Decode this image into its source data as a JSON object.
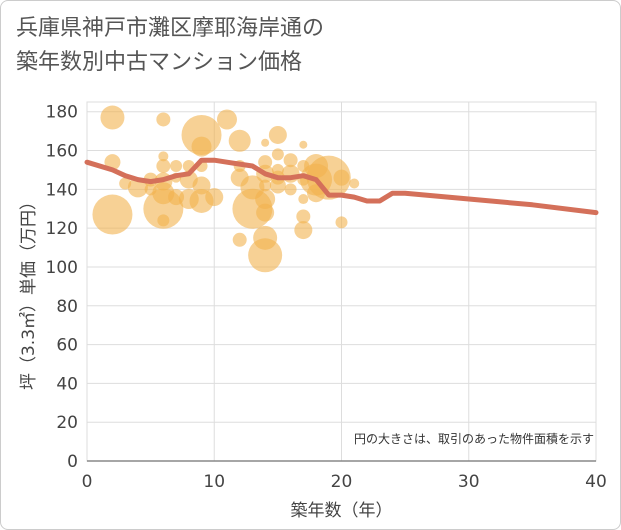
{
  "chart_data": {
    "type": "scatter",
    "title_line1": "兵庫県神戸市灘区摩耶海岸通の",
    "title_line2": "築年数別中古マンション価格",
    "xlabel": "築年数（年）",
    "ylabel": "坪（3.3㎡）単価（万円）",
    "xlim": [
      0,
      40
    ],
    "ylim": [
      0,
      185
    ],
    "x_ticks": [
      0,
      10,
      20,
      30,
      40
    ],
    "y_ticks": [
      0,
      20,
      40,
      60,
      80,
      100,
      120,
      140,
      160,
      180
    ],
    "note": "円の大きさは、取引のあった物件面積を示す",
    "colors": {
      "bubble": "#f2b24f",
      "trend": "#d4705a",
      "grid": "#dddddd"
    },
    "bubbles": [
      {
        "x": 2,
        "y": 177,
        "s": 12
      },
      {
        "x": 2,
        "y": 127,
        "s": 20
      },
      {
        "x": 2,
        "y": 154,
        "s": 8
      },
      {
        "x": 3,
        "y": 143,
        "s": 6
      },
      {
        "x": 4,
        "y": 141,
        "s": 10
      },
      {
        "x": 5,
        "y": 145,
        "s": 7
      },
      {
        "x": 5,
        "y": 140,
        "s": 6
      },
      {
        "x": 6,
        "y": 176,
        "s": 7
      },
      {
        "x": 6,
        "y": 157,
        "s": 5
      },
      {
        "x": 6,
        "y": 152,
        "s": 7
      },
      {
        "x": 6,
        "y": 144,
        "s": 9
      },
      {
        "x": 6,
        "y": 138,
        "s": 11
      },
      {
        "x": 6,
        "y": 130,
        "s": 20
      },
      {
        "x": 6,
        "y": 124,
        "s": 6
      },
      {
        "x": 7,
        "y": 152,
        "s": 6
      },
      {
        "x": 7,
        "y": 146,
        "s": 5
      },
      {
        "x": 7,
        "y": 136,
        "s": 8
      },
      {
        "x": 8,
        "y": 152,
        "s": 6
      },
      {
        "x": 8,
        "y": 145,
        "s": 9
      },
      {
        "x": 8,
        "y": 135,
        "s": 10
      },
      {
        "x": 9,
        "y": 168,
        "s": 20
      },
      {
        "x": 9,
        "y": 162,
        "s": 10
      },
      {
        "x": 9,
        "y": 152,
        "s": 6
      },
      {
        "x": 9,
        "y": 142,
        "s": 9
      },
      {
        "x": 9,
        "y": 134,
        "s": 12
      },
      {
        "x": 10,
        "y": 136,
        "s": 9
      },
      {
        "x": 11,
        "y": 176,
        "s": 10
      },
      {
        "x": 12,
        "y": 165,
        "s": 11
      },
      {
        "x": 12,
        "y": 152,
        "s": 6
      },
      {
        "x": 12,
        "y": 146,
        "s": 9
      },
      {
        "x": 12,
        "y": 114,
        "s": 7
      },
      {
        "x": 13,
        "y": 141,
        "s": 12
      },
      {
        "x": 13,
        "y": 130,
        "s": 20
      },
      {
        "x": 14,
        "y": 164,
        "s": 4
      },
      {
        "x": 14,
        "y": 154,
        "s": 7
      },
      {
        "x": 14,
        "y": 148,
        "s": 9
      },
      {
        "x": 14,
        "y": 142,
        "s": 6
      },
      {
        "x": 14,
        "y": 135,
        "s": 10
      },
      {
        "x": 14,
        "y": 128,
        "s": 9
      },
      {
        "x": 14,
        "y": 115,
        "s": 12
      },
      {
        "x": 14,
        "y": 106,
        "s": 17
      },
      {
        "x": 15,
        "y": 168,
        "s": 9
      },
      {
        "x": 15,
        "y": 158,
        "s": 6
      },
      {
        "x": 15,
        "y": 150,
        "s": 6
      },
      {
        "x": 15,
        "y": 146,
        "s": 7
      },
      {
        "x": 15,
        "y": 142,
        "s": 8
      },
      {
        "x": 16,
        "y": 155,
        "s": 7
      },
      {
        "x": 16,
        "y": 148,
        "s": 9
      },
      {
        "x": 16,
        "y": 140,
        "s": 6
      },
      {
        "x": 17,
        "y": 163,
        "s": 4
      },
      {
        "x": 17,
        "y": 152,
        "s": 6
      },
      {
        "x": 17,
        "y": 145,
        "s": 6
      },
      {
        "x": 17,
        "y": 135,
        "s": 5
      },
      {
        "x": 17,
        "y": 126,
        "s": 7
      },
      {
        "x": 17,
        "y": 119,
        "s": 9
      },
      {
        "x": 18,
        "y": 152,
        "s": 12
      },
      {
        "x": 18,
        "y": 145,
        "s": 16
      },
      {
        "x": 18,
        "y": 138,
        "s": 9
      },
      {
        "x": 19,
        "y": 146,
        "s": 22
      },
      {
        "x": 20,
        "y": 146,
        "s": 8
      },
      {
        "x": 20,
        "y": 123,
        "s": 6
      },
      {
        "x": 21,
        "y": 143,
        "s": 5
      }
    ],
    "trend": [
      {
        "x": 0,
        "y": 154
      },
      {
        "x": 2,
        "y": 150
      },
      {
        "x": 3,
        "y": 147
      },
      {
        "x": 4,
        "y": 145
      },
      {
        "x": 5,
        "y": 144
      },
      {
        "x": 6,
        "y": 145
      },
      {
        "x": 7,
        "y": 147
      },
      {
        "x": 8,
        "y": 148
      },
      {
        "x": 9,
        "y": 155
      },
      {
        "x": 10,
        "y": 155
      },
      {
        "x": 11,
        "y": 154
      },
      {
        "x": 12,
        "y": 153
      },
      {
        "x": 13,
        "y": 152
      },
      {
        "x": 14,
        "y": 148
      },
      {
        "x": 15,
        "y": 146
      },
      {
        "x": 16,
        "y": 146
      },
      {
        "x": 17,
        "y": 147
      },
      {
        "x": 18,
        "y": 145
      },
      {
        "x": 19,
        "y": 137
      },
      {
        "x": 20,
        "y": 137
      },
      {
        "x": 21,
        "y": 136
      },
      {
        "x": 22,
        "y": 134
      },
      {
        "x": 23,
        "y": 134
      },
      {
        "x": 24,
        "y": 138
      },
      {
        "x": 25,
        "y": 138
      },
      {
        "x": 30,
        "y": 135
      },
      {
        "x": 35,
        "y": 132
      },
      {
        "x": 40,
        "y": 128
      }
    ]
  }
}
